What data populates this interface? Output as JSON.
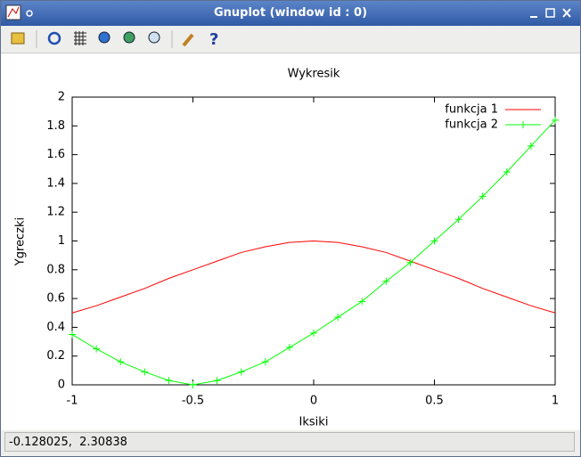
{
  "window": {
    "title": "Gnuplot (window id : 0)",
    "status": "-0.128025,  2.30838"
  },
  "chart_data": {
    "type": "line",
    "title": "Wykresik",
    "x_label": "Iksiki",
    "y_label": "Ygreczki",
    "x": [
      -1,
      -0.9,
      -0.8,
      -0.7,
      -0.6,
      -0.5,
      -0.4,
      -0.3,
      -0.2,
      -0.1,
      0,
      0.1,
      0.2,
      0.3,
      0.4,
      0.5,
      0.6,
      0.7,
      0.8,
      0.9,
      1
    ],
    "series": [
      {
        "name": "funkcja 1",
        "color": "#ff0000",
        "values": [
          0.5,
          0.55,
          0.61,
          0.67,
          0.74,
          0.8,
          0.86,
          0.92,
          0.96,
          0.99,
          1,
          0.99,
          0.96,
          0.92,
          0.86,
          0.8,
          0.74,
          0.67,
          0.61,
          0.55,
          0.5
        ]
      },
      {
        "name": "funkcja 2",
        "color": "#00ff00",
        "marker": "+",
        "values": [
          0.35,
          0.25,
          0.16,
          0.09,
          0.03,
          0,
          0.03,
          0.09,
          0.16,
          0.26,
          0.36,
          0.47,
          0.58,
          0.72,
          0.85,
          1,
          1.15,
          1.31,
          1.48,
          1.66,
          1.84
        ]
      }
    ],
    "xlim": [
      -1,
      1
    ],
    "ylim": [
      0,
      2
    ],
    "xticks": [
      -1,
      -0.5,
      0,
      0.5,
      1
    ],
    "yticks": [
      0,
      0.2,
      0.4,
      0.6,
      0.8,
      1,
      1.2,
      1.4,
      1.6,
      1.8,
      2
    ],
    "legend": "upper right"
  }
}
